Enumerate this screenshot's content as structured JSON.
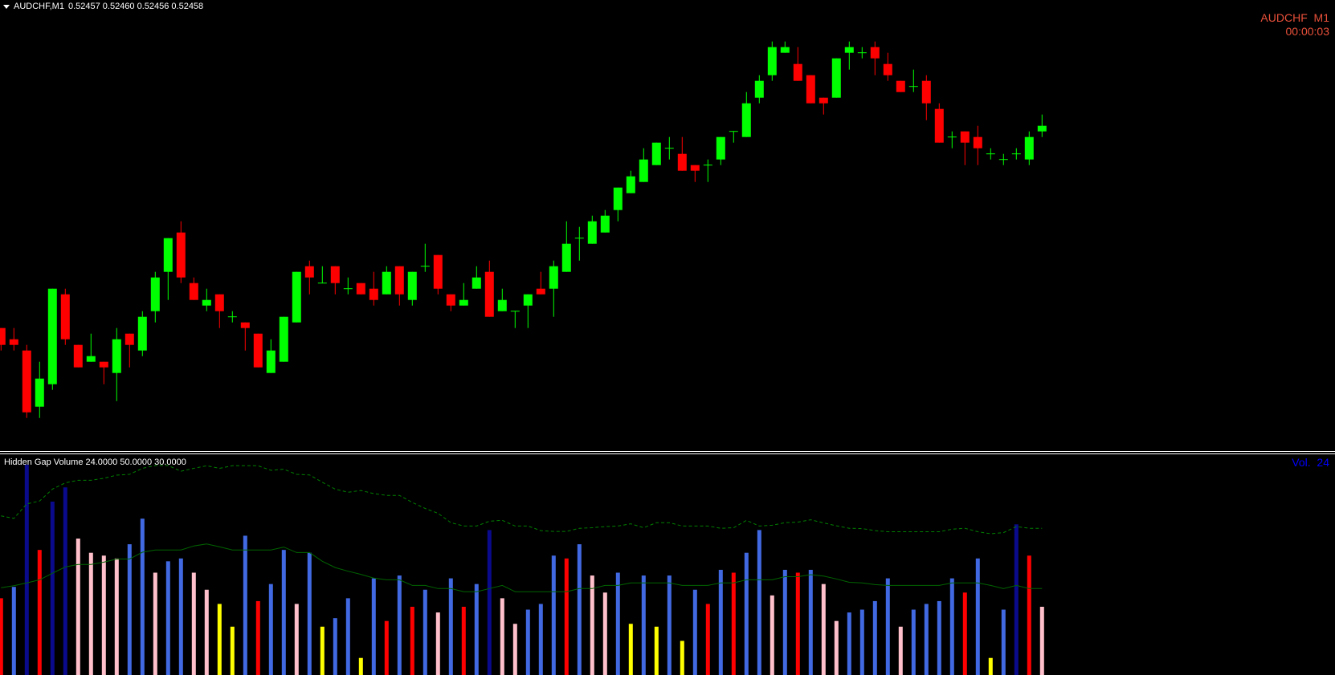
{
  "header": {
    "symbol_timeframe": "AUDCHF,M1",
    "ohlc": "0.52457 0.52460 0.52456 0.52458"
  },
  "info": {
    "symbol": "AUDCHF",
    "timeframe": "M1",
    "timer": "00:00:03"
  },
  "indicator": {
    "label": "Hidden Gap Volume 24.0000 50.0000 30.0000",
    "value_label": "Vol.",
    "value": "24"
  },
  "colors": {
    "background": "#000000",
    "bull": "#00ff00",
    "bear": "#ff0000",
    "info_text": "#e8503a",
    "vol_text": "#0000ff",
    "vol_red": "#ff0000",
    "vol_blue": "#4169e1",
    "vol_navy": "#0a0a8c",
    "vol_pink": "#ffc0cb",
    "vol_yellow": "#ffff00",
    "line_solid": "#006400",
    "line_dashed": "#008000"
  },
  "chart_data": [
    {
      "type": "candlestick",
      "title": "",
      "ylim": [
        0.524,
        0.5248
      ],
      "grid": false,
      "ohlc": [
        [
          0.52422,
          0.52422,
          0.52418,
          0.52419
        ],
        [
          0.5242,
          0.52422,
          0.52418,
          0.52419
        ],
        [
          0.52418,
          0.52419,
          0.52406,
          0.52407
        ],
        [
          0.52408,
          0.52416,
          0.52406,
          0.52413
        ],
        [
          0.52412,
          0.52429,
          0.52411,
          0.52429
        ],
        [
          0.52428,
          0.52429,
          0.52419,
          0.5242
        ],
        [
          0.52419,
          0.52419,
          0.52415,
          0.52415
        ],
        [
          0.52416,
          0.52421,
          0.52416,
          0.52417
        ],
        [
          0.52416,
          0.52416,
          0.52412,
          0.52415
        ],
        [
          0.52414,
          0.52422,
          0.52409,
          0.5242
        ],
        [
          0.52421,
          0.52421,
          0.52415,
          0.52419
        ],
        [
          0.52418,
          0.52425,
          0.52417,
          0.52424
        ],
        [
          0.52425,
          0.52432,
          0.52423,
          0.52431
        ],
        [
          0.52432,
          0.52438,
          0.52427,
          0.52438
        ],
        [
          0.52439,
          0.52441,
          0.5243,
          0.52431
        ],
        [
          0.5243,
          0.52431,
          0.52427,
          0.52427
        ],
        [
          0.52426,
          0.52429,
          0.52425,
          0.52427
        ],
        [
          0.52428,
          0.52428,
          0.52422,
          0.52425
        ],
        [
          0.52424,
          0.52425,
          0.52423,
          0.52424
        ],
        [
          0.52423,
          0.52423,
          0.52418,
          0.52422
        ],
        [
          0.52421,
          0.52421,
          0.52415,
          0.52415
        ],
        [
          0.52414,
          0.5242,
          0.52414,
          0.52418
        ],
        [
          0.52416,
          0.52424,
          0.52416,
          0.52424
        ],
        [
          0.52423,
          0.52432,
          0.52423,
          0.52432
        ],
        [
          0.52433,
          0.52434,
          0.52428,
          0.52431
        ],
        [
          0.5243,
          0.52433,
          0.5243,
          0.5243
        ],
        [
          0.52433,
          0.52433,
          0.52428,
          0.5243
        ],
        [
          0.52429,
          0.52431,
          0.52428,
          0.52429
        ],
        [
          0.5243,
          0.5243,
          0.52428,
          0.52428
        ],
        [
          0.52429,
          0.52432,
          0.52426,
          0.52427
        ],
        [
          0.52428,
          0.52433,
          0.52428,
          0.52432
        ],
        [
          0.52433,
          0.52433,
          0.52426,
          0.52428
        ],
        [
          0.52427,
          0.52432,
          0.52426,
          0.52432
        ],
        [
          0.52433,
          0.52437,
          0.52432,
          0.52433
        ],
        [
          0.52435,
          0.52435,
          0.52428,
          0.52429
        ],
        [
          0.52428,
          0.52428,
          0.52425,
          0.52426
        ],
        [
          0.52426,
          0.5243,
          0.52426,
          0.52427
        ],
        [
          0.52429,
          0.52433,
          0.52429,
          0.52431
        ],
        [
          0.52432,
          0.52434,
          0.52424,
          0.52424
        ],
        [
          0.52425,
          0.52429,
          0.52425,
          0.52427
        ],
        [
          0.52425,
          0.52425,
          0.52422,
          0.52425
        ],
        [
          0.52426,
          0.52428,
          0.52422,
          0.52428
        ],
        [
          0.52429,
          0.52432,
          0.52428,
          0.52428
        ],
        [
          0.52429,
          0.52434,
          0.52424,
          0.52433
        ],
        [
          0.52432,
          0.52441,
          0.52432,
          0.52437
        ],
        [
          0.52438,
          0.5244,
          0.52434,
          0.52438
        ],
        [
          0.52437,
          0.52442,
          0.52437,
          0.52441
        ],
        [
          0.52439,
          0.52443,
          0.52439,
          0.52442
        ],
        [
          0.52443,
          0.52447,
          0.52441,
          0.52447
        ],
        [
          0.52446,
          0.5245,
          0.52446,
          0.52449
        ],
        [
          0.52448,
          0.52454,
          0.52448,
          0.52452
        ],
        [
          0.52451,
          0.52455,
          0.52451,
          0.52455
        ],
        [
          0.52454,
          0.52456,
          0.52452,
          0.52454
        ],
        [
          0.52453,
          0.52456,
          0.5245,
          0.5245
        ],
        [
          0.52451,
          0.52451,
          0.52448,
          0.5245
        ],
        [
          0.52451,
          0.52452,
          0.52448,
          0.52451
        ],
        [
          0.52452,
          0.52456,
          0.52451,
          0.52456
        ],
        [
          0.52457,
          0.52457,
          0.52455,
          0.52457
        ],
        [
          0.52456,
          0.52464,
          0.52456,
          0.52462
        ],
        [
          0.52463,
          0.52467,
          0.52462,
          0.52466
        ],
        [
          0.52467,
          0.52473,
          0.52466,
          0.52472
        ],
        [
          0.52471,
          0.52473,
          0.52471,
          0.52472
        ],
        [
          0.52469,
          0.52472,
          0.52466,
          0.52466
        ],
        [
          0.52467,
          0.52467,
          0.52462,
          0.52462
        ],
        [
          0.52463,
          0.52463,
          0.5246,
          0.52462
        ],
        [
          0.52463,
          0.5247,
          0.52463,
          0.5247
        ],
        [
          0.52471,
          0.52473,
          0.52468,
          0.52472
        ],
        [
          0.52471,
          0.52472,
          0.5247,
          0.52471
        ],
        [
          0.52472,
          0.52473,
          0.52467,
          0.5247
        ],
        [
          0.52469,
          0.52471,
          0.52466,
          0.52467
        ],
        [
          0.52466,
          0.52466,
          0.52464,
          0.52464
        ],
        [
          0.52465,
          0.52468,
          0.52464,
          0.52465
        ],
        [
          0.52466,
          0.52467,
          0.52459,
          0.52462
        ],
        [
          0.52461,
          0.52462,
          0.52455,
          0.52455
        ],
        [
          0.52456,
          0.52457,
          0.52454,
          0.52456
        ],
        [
          0.52457,
          0.52457,
          0.52451,
          0.52455
        ],
        [
          0.52456,
          0.52458,
          0.52451,
          0.52454
        ],
        [
          0.52453,
          0.52454,
          0.52452,
          0.52453
        ],
        [
          0.52452,
          0.52453,
          0.52451,
          0.52452
        ],
        [
          0.52453,
          0.52454,
          0.52452,
          0.52453
        ],
        [
          0.52452,
          0.52457,
          0.52451,
          0.52456
        ],
        [
          0.52457,
          0.5246,
          0.52456,
          0.52458
        ]
      ]
    },
    {
      "type": "bar",
      "title": "Hidden Gap Volume",
      "ylim": [
        0,
        78
      ],
      "grid": false,
      "values": [
        27,
        31,
        74,
        44,
        61,
        66,
        48,
        43,
        42,
        41,
        46,
        55,
        36,
        40,
        41,
        36,
        30,
        25,
        17,
        49,
        26,
        32,
        44,
        25,
        43,
        17,
        20,
        27,
        6,
        34,
        19,
        35,
        24,
        30,
        22,
        34,
        24,
        32,
        51,
        27,
        18,
        23,
        25,
        42,
        41,
        46,
        35,
        29,
        36,
        18,
        35,
        17,
        35,
        12,
        30,
        25,
        37,
        36,
        43,
        51,
        28,
        37,
        36,
        37,
        32,
        19,
        22,
        23,
        26,
        34,
        17,
        23,
        25,
        26,
        34,
        29,
        41,
        6,
        23,
        53,
        42,
        24
      ],
      "bar_colors": [
        "red",
        "blue",
        "navy",
        "red",
        "navy",
        "navy",
        "pink",
        "pink",
        "pink",
        "pink",
        "blue",
        "blue",
        "pink",
        "blue",
        "blue",
        "pink",
        "pink",
        "yellow",
        "yellow",
        "blue",
        "red",
        "blue",
        "blue",
        "pink",
        "blue",
        "yellow",
        "blue",
        "blue",
        "yellow",
        "blue",
        "red",
        "blue",
        "red",
        "blue",
        "pink",
        "blue",
        "red",
        "blue",
        "navy",
        "pink",
        "pink",
        "blue",
        "blue",
        "blue",
        "red",
        "blue",
        "pink",
        "pink",
        "blue",
        "yellow",
        "blue",
        "yellow",
        "blue",
        "yellow",
        "blue",
        "red",
        "blue",
        "red",
        "blue",
        "blue",
        "pink",
        "blue",
        "red",
        "blue",
        "pink",
        "pink",
        "blue",
        "blue",
        "blue",
        "blue",
        "pink",
        "blue",
        "blue",
        "blue",
        "blue",
        "red",
        "blue",
        "yellow",
        "blue",
        "navy",
        "red",
        "pink"
      ],
      "lines": [
        {
          "style": "solid",
          "values": [
            30.7,
            31.4,
            32.4,
            33.5,
            35.8,
            38.0,
            38.9,
            38.9,
            39.7,
            40.8,
            40.8,
            43.2,
            44.0,
            44.0,
            44.0,
            45.4,
            46.1,
            45.1,
            44.0,
            44.0,
            44.0,
            44.0,
            45.0,
            43.1,
            43.1,
            40.0,
            37.8,
            36.5,
            35.4,
            34.1,
            33.5,
            33.5,
            31.5,
            31.5,
            30.4,
            30.4,
            29.3,
            29.3,
            30.4,
            31.5,
            29.3,
            29.3,
            29.3,
            29.3,
            29.3,
            30.4,
            30.4,
            31.5,
            31.5,
            32.4,
            32.4,
            32.4,
            32.4,
            31.5,
            31.5,
            31.5,
            32.4,
            32.4,
            33.5,
            33.5,
            33.5,
            34.6,
            34.6,
            35.3,
            34.8,
            33.8,
            32.6,
            32.4,
            31.8,
            31.5,
            31.5,
            31.5,
            31.5,
            31.5,
            32.4,
            32.4,
            32.4,
            31.5,
            30.4,
            31.5,
            30.4,
            30.4
          ]
        },
        {
          "style": "dashed",
          "values": [
            56.0,
            55.1,
            60.2,
            61.2,
            65.4,
            67.6,
            68.5,
            68.5,
            69.2,
            70.3,
            70.6,
            72.7,
            73.7,
            73.7,
            71.7,
            72.7,
            73.6,
            72.7,
            73.6,
            73.6,
            73.6,
            72.0,
            72.4,
            70.6,
            70.4,
            67.8,
            65.4,
            64.3,
            64.9,
            63.8,
            63.2,
            63.2,
            60.7,
            58.6,
            56.9,
            53.6,
            52.4,
            52.4,
            54.1,
            54.4,
            52.4,
            52.4,
            50.8,
            50.5,
            50.5,
            51.6,
            51.8,
            52.2,
            52.4,
            53.2,
            51.8,
            53.6,
            53.6,
            52.4,
            52.4,
            52.4,
            51.6,
            51.8,
            54.4,
            52.4,
            52.7,
            53.6,
            53.8,
            54.6,
            53.5,
            52.5,
            51.6,
            51.5,
            50.8,
            50.4,
            50.4,
            50.4,
            50.4,
            50.4,
            51.3,
            51.6,
            50.4,
            49.7,
            50.1,
            52.2,
            51.6,
            51.6
          ]
        }
      ]
    }
  ]
}
